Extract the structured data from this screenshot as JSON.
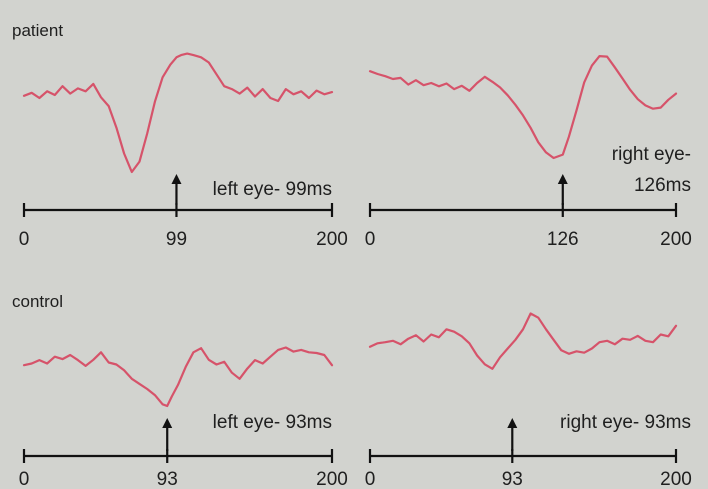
{
  "chart_data": [
    {
      "type": "line",
      "group_label": "patient",
      "eye_label": "left eye",
      "annotation": "left eye- 99ms",
      "annotation_lines": [
        "left eye- 99ms"
      ],
      "xlim": [
        0,
        200
      ],
      "x_ticks": [
        "0",
        "99",
        "200"
      ],
      "peak_latency_ms": 99,
      "peak_label": "99",
      "series": [
        {
          "x": [
            0,
            5,
            10,
            15,
            20,
            25,
            30,
            35,
            40,
            45,
            50,
            55,
            60,
            65,
            70,
            75,
            80,
            85,
            90,
            95,
            99,
            102,
            106,
            110,
            115,
            120,
            125,
            130,
            135,
            140,
            145,
            150,
            155,
            160,
            165,
            170,
            175,
            180,
            185,
            190,
            195,
            200
          ],
          "values": [
            0.03,
            0.07,
            0.0,
            0.09,
            0.04,
            0.16,
            0.06,
            0.13,
            0.09,
            0.19,
            0.01,
            -0.11,
            -0.4,
            -0.75,
            -1.0,
            -0.86,
            -0.48,
            -0.05,
            0.28,
            0.45,
            0.55,
            0.58,
            0.6,
            0.58,
            0.55,
            0.48,
            0.32,
            0.16,
            0.12,
            0.06,
            0.14,
            0.02,
            0.12,
            0.0,
            -0.04,
            0.12,
            0.05,
            0.09,
            0.0,
            0.1,
            0.05,
            0.08
          ]
        }
      ]
    },
    {
      "type": "line",
      "group_label": "",
      "eye_label": "right eye",
      "annotation": "right eye- 126ms",
      "annotation_lines": [
        "right eye-",
        "126ms"
      ],
      "xlim": [
        0,
        200
      ],
      "x_ticks": [
        "0",
        "126",
        "200"
      ],
      "peak_latency_ms": 126,
      "peak_label": "126",
      "series": [
        {
          "x": [
            0,
            5,
            10,
            15,
            20,
            25,
            30,
            35,
            40,
            45,
            50,
            55,
            60,
            65,
            70,
            75,
            80,
            85,
            90,
            95,
            100,
            105,
            110,
            115,
            120,
            126,
            130,
            135,
            140,
            145,
            150,
            155,
            160,
            165,
            170,
            175,
            180,
            185,
            190,
            195,
            200
          ],
          "values": [
            0.55,
            0.5,
            0.46,
            0.41,
            0.43,
            0.31,
            0.39,
            0.3,
            0.34,
            0.28,
            0.33,
            0.23,
            0.29,
            0.2,
            0.34,
            0.45,
            0.36,
            0.26,
            0.12,
            -0.05,
            -0.24,
            -0.46,
            -0.72,
            -0.9,
            -1.0,
            -0.94,
            -0.62,
            -0.15,
            0.35,
            0.65,
            0.82,
            0.81,
            0.62,
            0.42,
            0.22,
            0.05,
            -0.06,
            -0.12,
            -0.1,
            0.04,
            0.15
          ]
        }
      ]
    },
    {
      "type": "line",
      "group_label": "control",
      "eye_label": "left eye",
      "annotation": "left eye- 93ms",
      "annotation_lines": [
        "left eye- 93ms"
      ],
      "xlim": [
        0,
        200
      ],
      "x_ticks": [
        "0",
        "93",
        "200"
      ],
      "peak_latency_ms": 93,
      "peak_label": "93",
      "series": [
        {
          "x": [
            0,
            5,
            10,
            15,
            20,
            25,
            30,
            35,
            40,
            45,
            50,
            55,
            60,
            65,
            70,
            75,
            80,
            85,
            90,
            93,
            96,
            100,
            105,
            110,
            115,
            120,
            125,
            130,
            135,
            140,
            145,
            150,
            155,
            160,
            165,
            170,
            175,
            180,
            185,
            190,
            195,
            200
          ],
          "values": [
            0.2,
            0.25,
            0.35,
            0.25,
            0.45,
            0.38,
            0.5,
            0.35,
            0.18,
            0.36,
            0.58,
            0.28,
            0.22,
            0.05,
            -0.2,
            -0.35,
            -0.5,
            -0.68,
            -0.95,
            -1.0,
            -0.72,
            -0.38,
            0.15,
            0.58,
            0.7,
            0.36,
            0.22,
            0.3,
            -0.02,
            -0.2,
            0.1,
            0.35,
            0.25,
            0.45,
            0.65,
            0.72,
            0.6,
            0.65,
            0.58,
            0.56,
            0.5,
            0.2
          ]
        }
      ]
    },
    {
      "type": "line",
      "group_label": "",
      "eye_label": "right eye",
      "annotation": "right eye- 93ms",
      "annotation_lines": [
        "right eye- 93ms"
      ],
      "xlim": [
        0,
        200
      ],
      "x_ticks": [
        "0",
        "93",
        "200"
      ],
      "peak_latency_ms": 93,
      "peak_label": "93",
      "series": [
        {
          "x": [
            0,
            5,
            10,
            15,
            20,
            25,
            30,
            35,
            40,
            45,
            50,
            55,
            60,
            65,
            70,
            75,
            80,
            85,
            90,
            95,
            100,
            105,
            110,
            115,
            120,
            125,
            130,
            135,
            140,
            145,
            150,
            155,
            160,
            165,
            170,
            175,
            180,
            185,
            190,
            195,
            200
          ],
          "values": [
            -0.05,
            0.05,
            0.08,
            0.12,
            0.02,
            0.18,
            0.28,
            0.1,
            0.3,
            0.22,
            0.45,
            0.38,
            0.25,
            0.05,
            -0.3,
            -0.55,
            -0.68,
            -0.35,
            -0.1,
            0.15,
            0.45,
            0.9,
            0.78,
            0.45,
            0.15,
            -0.15,
            -0.25,
            -0.18,
            -0.22,
            -0.1,
            0.08,
            0.12,
            0.02,
            0.18,
            0.15,
            0.26,
            0.12,
            0.08,
            0.3,
            0.25,
            0.55
          ]
        }
      ]
    }
  ],
  "colors": {
    "background": "#d2d3cf",
    "trace": "#d6536a",
    "axis": "#111111",
    "text": "#1f1f1f"
  }
}
